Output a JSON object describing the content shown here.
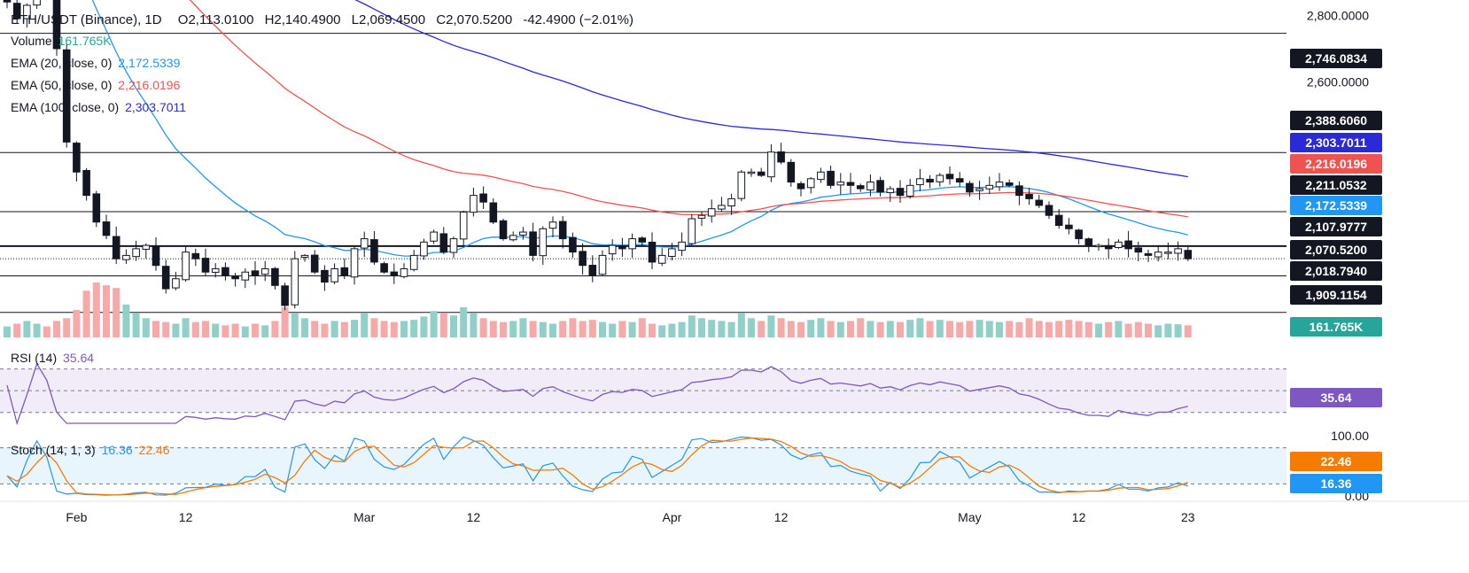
{
  "header": {
    "symbol": "ETH/USDT (Binance), 1D",
    "open": "O2,113.0100",
    "high": "H2,140.4900",
    "low": "L2,069.4500",
    "close": "C2,070.5200",
    "change": "-42.4900 (−2.01%)"
  },
  "legend": {
    "volume": {
      "label": "Volume",
      "value": "161.765K",
      "color": "#26a69a"
    },
    "ema20": {
      "label": "EMA (20, close, 0)",
      "value": "2,172.5339",
      "color": "#2196f3"
    },
    "ema50": {
      "label": "EMA (50, close, 0)",
      "value": "2,216.0196",
      "color": "#ef5350"
    },
    "ema100": {
      "label": "EMA (100, close, 0)",
      "value": "2,303.7011",
      "color": "#2a2ad9"
    },
    "rsi": {
      "label": "RSI (14)",
      "value": "35.64",
      "color": "#7e57c2"
    },
    "stoch": {
      "label": "Stoch (14, 1, 3)",
      "k": "16.36",
      "d": "22.46",
      "k_color": "#2196f3",
      "d_color": "#f57c00"
    }
  },
  "chart_data": {
    "type": "candlestick",
    "x_ticks": [
      {
        "label": "Feb",
        "index": 7
      },
      {
        "label": "12",
        "index": 18
      },
      {
        "label": "Mar",
        "index": 36
      },
      {
        "label": "12",
        "index": 47
      },
      {
        "label": "Apr",
        "index": 67
      },
      {
        "label": "12",
        "index": 78
      },
      {
        "label": "May",
        "index": 97
      },
      {
        "label": "12",
        "index": 108
      },
      {
        "label": "23",
        "index": 119
      }
    ],
    "price_axis_ticks": [
      "2,800.0000",
      "2,600.0000"
    ],
    "price_ylim": [
      1850,
      2830
    ],
    "horizontal_levels": [
      2746.0834,
      2388.606,
      2211.0532,
      2107.9777,
      2018.794,
      1909.1154
    ],
    "price_badges": [
      {
        "text": "2,746.0834",
        "value": 2746.0834,
        "bg": "#131722"
      },
      {
        "text": "2,388.6060",
        "value": 2388.606,
        "bg": "#131722"
      },
      {
        "text": "2,303.7011",
        "value": 2303.7011,
        "bg": "#2a2ad9"
      },
      {
        "text": "2,216.0196",
        "value": 2216.0196,
        "bg": "#ef5350"
      },
      {
        "text": "2,211.0532",
        "value": 2211.0532,
        "bg": "#131722"
      },
      {
        "text": "2,172.5339",
        "value": 2172.5339,
        "bg": "#2196f3"
      },
      {
        "text": "2,107.9777",
        "value": 2107.9777,
        "bg": "#131722"
      },
      {
        "text": "2,070.5200",
        "value": 2070.52,
        "bg": "#131722"
      },
      {
        "text": "2,018.7940",
        "value": 2018.794,
        "bg": "#131722"
      },
      {
        "text": "1,909.1154",
        "value": 1909.1154,
        "bg": "#131722"
      }
    ],
    "volume_badge": {
      "text": "161.765K",
      "bg": "#26a69a"
    },
    "rsi_badge": {
      "text": "35.64",
      "bg": "#7e57c2"
    },
    "stoch_badges": [
      {
        "text": "22.46",
        "value": 22.46,
        "bg": "#f57c00"
      },
      {
        "text": "16.36",
        "value": 16.36,
        "bg": "#2196f3"
      }
    ],
    "stoch_axis_ticks": [
      {
        "text": "100.00",
        "value": 100
      },
      {
        "text": "0.00",
        "value": 0
      }
    ],
    "closes": [
      2840,
      2790,
      2830,
      2920,
      2880,
      2700,
      2420,
      2330,
      2260,
      2180,
      2140,
      2070,
      2080,
      2100,
      2110,
      2050,
      1980,
      2010,
      2090,
      2070,
      2030,
      2040,
      2020,
      2010,
      2030,
      2020,
      2040,
      1990,
      1930,
      2070,
      2080,
      2030,
      2000,
      2040,
      2020,
      2100,
      2130,
      2060,
      2030,
      2020,
      2040,
      2080,
      2120,
      2150,
      2090,
      2130,
      2210,
      2260,
      2240,
      2180,
      2130,
      2140,
      2150,
      2080,
      2160,
      2180,
      2130,
      2090,
      2050,
      2020,
      2080,
      2110,
      2100,
      2130,
      2120,
      2060,
      2080,
      2100,
      2120,
      2190,
      2200,
      2220,
      2230,
      2250,
      2330,
      2330,
      2320,
      2390,
      2360,
      2300,
      2280,
      2310,
      2330,
      2290,
      2300,
      2290,
      2280,
      2300,
      2270,
      2280,
      2260,
      2290,
      2310,
      2300,
      2320,
      2310,
      2300,
      2270,
      2280,
      2290,
      2300,
      2290,
      2260,
      2250,
      2230,
      2200,
      2170,
      2160,
      2130,
      2110,
      2110,
      2100,
      2120,
      2100,
      2090,
      2080,
      2090,
      2090,
      2100,
      2070
    ],
    "volume_relative": [
      0.2,
      0.25,
      0.3,
      0.25,
      0.2,
      0.3,
      0.35,
      0.5,
      0.85,
      1.0,
      0.95,
      0.9,
      0.6,
      0.45,
      0.35,
      0.3,
      0.28,
      0.25,
      0.35,
      0.28,
      0.3,
      0.25,
      0.22,
      0.25,
      0.2,
      0.25,
      0.22,
      0.3,
      0.55,
      0.45,
      0.35,
      0.3,
      0.25,
      0.3,
      0.28,
      0.32,
      0.45,
      0.35,
      0.3,
      0.28,
      0.3,
      0.32,
      0.38,
      0.48,
      0.45,
      0.4,
      0.55,
      0.45,
      0.35,
      0.3,
      0.28,
      0.3,
      0.35,
      0.3,
      0.28,
      0.25,
      0.3,
      0.35,
      0.3,
      0.32,
      0.28,
      0.25,
      0.3,
      0.28,
      0.35,
      0.25,
      0.22,
      0.25,
      0.28,
      0.4,
      0.35,
      0.32,
      0.3,
      0.28,
      0.45,
      0.35,
      0.3,
      0.4,
      0.35,
      0.3,
      0.28,
      0.32,
      0.35,
      0.3,
      0.28,
      0.3,
      0.35,
      0.3,
      0.28,
      0.3,
      0.28,
      0.32,
      0.35,
      0.3,
      0.32,
      0.3,
      0.28,
      0.3,
      0.32,
      0.3,
      0.28,
      0.3,
      0.28,
      0.35,
      0.3,
      0.28,
      0.3,
      0.32,
      0.3,
      0.28,
      0.25,
      0.28,
      0.3,
      0.25,
      0.28,
      0.25,
      0.22,
      0.25,
      0.24,
      0.22
    ],
    "rsi_ylim": [
      20,
      90
    ],
    "rsi_band": [
      30,
      70
    ]
  }
}
